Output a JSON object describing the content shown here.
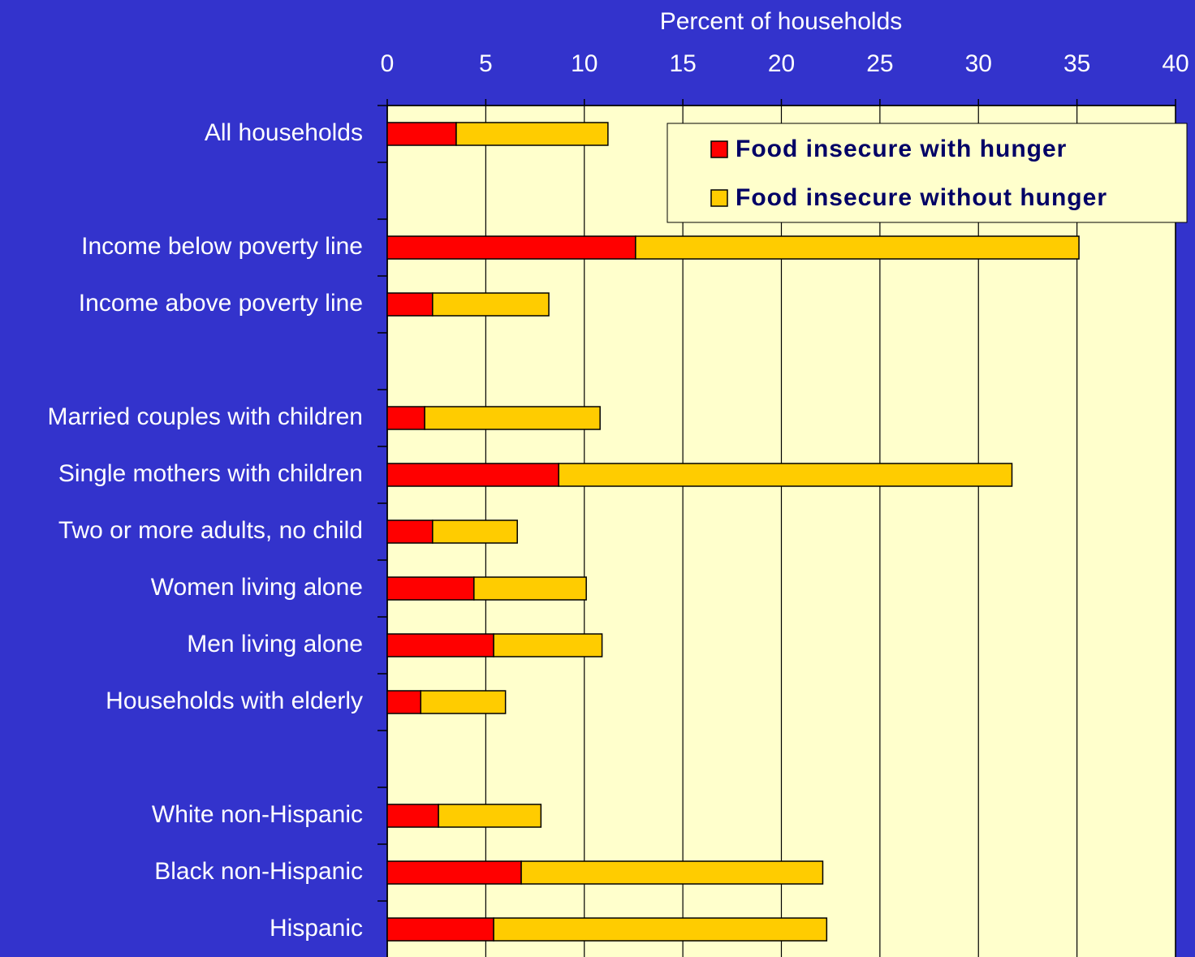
{
  "chart_data": {
    "type": "stacked-barh",
    "x_label": "Percent of households",
    "categories": [
      "All households",
      null,
      "Income below poverty line",
      "Income above poverty line",
      null,
      "Married couples with children",
      "Single mothers with children",
      "Two or more adults, no child",
      "Women living alone",
      "Men living alone",
      "Households with elderly",
      null,
      "White non-Hispanic",
      "Black non-Hispanic",
      "Hispanic"
    ],
    "series": [
      {
        "name": "Food insecure with hunger",
        "color": "#ff0000",
        "values": [
          3.5,
          null,
          12.6,
          2.3,
          null,
          1.9,
          8.7,
          2.3,
          4.4,
          5.4,
          1.7,
          null,
          2.6,
          6.8,
          5.4
        ]
      },
      {
        "name": "Food insecure without hunger",
        "color": "#ffcc00",
        "values": [
          7.7,
          null,
          22.5,
          5.9,
          null,
          8.9,
          23.0,
          4.3,
          5.7,
          5.5,
          4.3,
          null,
          5.2,
          15.3,
          16.9
        ]
      }
    ],
    "xlim": [
      0,
      40
    ],
    "xticks": [
      0,
      5,
      10,
      15,
      20,
      25,
      30,
      35,
      40
    ],
    "grid": true,
    "legend": "upper right"
  }
}
